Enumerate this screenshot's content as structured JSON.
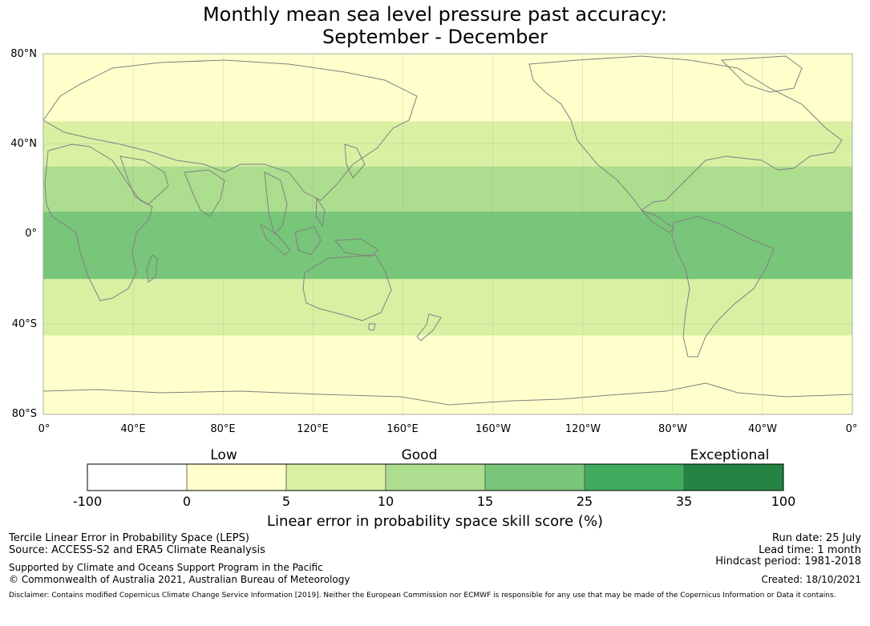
{
  "title": {
    "line1": "Monthly mean sea level pressure past accuracy:",
    "line2": "September - December"
  },
  "map": {
    "lat_labels": [
      "80°N",
      "40°N",
      "0°",
      "40°S",
      "80°S"
    ],
    "lon_labels": [
      "0°",
      "40°E",
      "80°E",
      "120°E",
      "160°E",
      "160°W",
      "120°W",
      "80°W",
      "40°W",
      "0°"
    ],
    "skill_bands": [
      {
        "lat_from": 80,
        "lat_to": 50,
        "level": 1
      },
      {
        "lat_from": 50,
        "lat_to": 30,
        "level": 2
      },
      {
        "lat_from": 30,
        "lat_to": 10,
        "level": 3
      },
      {
        "lat_from": 10,
        "lat_to": -20,
        "level": 4
      },
      {
        "lat_from": -20,
        "lat_to": -45,
        "level": 2
      },
      {
        "lat_from": -45,
        "lat_to": -80,
        "level": 1
      }
    ],
    "colors": {
      "land_outline": "#808080",
      "grid": "#999999"
    }
  },
  "colorbar": {
    "category_labels": [
      "Low",
      "Good",
      "Exceptional"
    ],
    "ticks": [
      "-100",
      "0",
      "5",
      "10",
      "15",
      "25",
      "35",
      "100"
    ],
    "colors": [
      "#ffffff",
      "#ffffcc",
      "#d9f0a3",
      "#addd8e",
      "#78c679",
      "#41ab5d",
      "#238443"
    ],
    "axis_label": "Linear error in probability space skill score (%)"
  },
  "footer": {
    "left_line1": "Tercile Linear Error in Probability Space (LEPS)",
    "left_line2": "Source: ACCESS-S2 and ERA5 Climate Reanalysis",
    "left_line3": "Supported by Climate and Oceans Support Program in the Pacific",
    "left_line4": "© Commonwealth of Australia 2021, Australian Bureau of Meteorology",
    "right_line1": "Run date: 25 July",
    "right_line2": "Lead time: 1 month",
    "right_line3": "Hindcast period: 1981-2018",
    "right_line4": "Created: 18/10/2021",
    "disclaimer": "Disclaimer: Contains modified Copernicus Climate Change Service Information [2019]. Neither the European Commission nor ECMWF is responsible for any use that may be made of the Copernicus Information or Data it contains."
  }
}
